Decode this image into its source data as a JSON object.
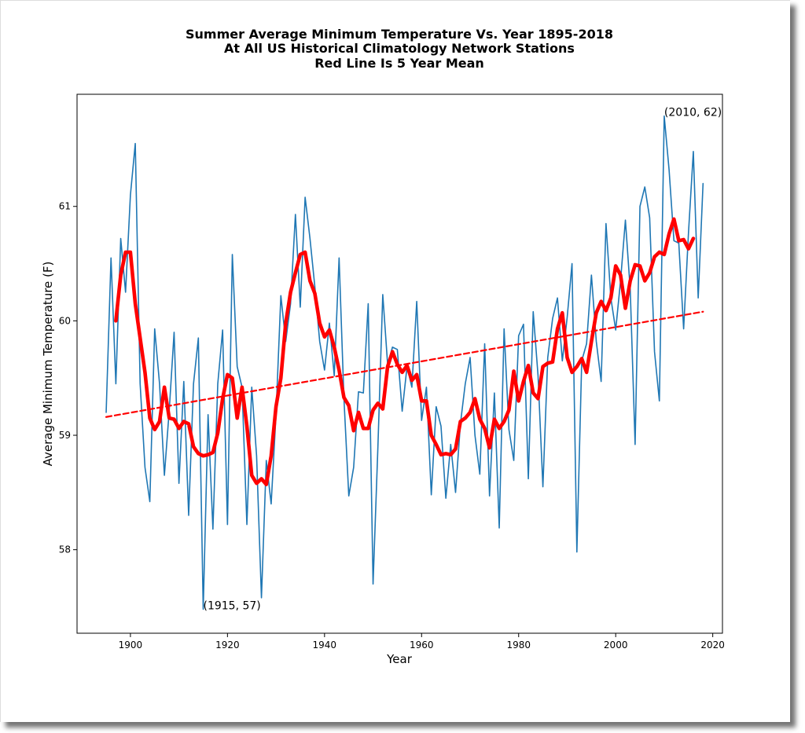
{
  "chart_data": {
    "type": "line",
    "title_lines": [
      "Summer Average Minimum Temperature Vs. Year 1895-2018",
      "At All US Historical Climatology Network Stations",
      "Red Line Is 5 Year Mean"
    ],
    "xlabel": "Year",
    "ylabel": "Average Minimum Temperature (F)",
    "xlim": [
      1889,
      2022
    ],
    "ylim": [
      57.27,
      61.98
    ],
    "xticks": [
      1900,
      1920,
      1940,
      1960,
      1980,
      2000,
      2020
    ],
    "yticks": [
      58,
      59,
      60,
      61
    ],
    "grid": false,
    "colors": {
      "series": "#1f77b4",
      "mean": "#ff0000",
      "trend": "#ff0000"
    },
    "annotations": [
      {
        "text": "(2010, 62)",
        "x": 2010,
        "y": 61.79
      },
      {
        "text": "(1915, 57)",
        "x": 1915,
        "y": 57.48
      }
    ],
    "series": [
      {
        "role": "annual",
        "x": [
          1895,
          1896,
          1897,
          1898,
          1899,
          1900,
          1901,
          1902,
          1903,
          1904,
          1905,
          1906,
          1907,
          1908,
          1909,
          1910,
          1911,
          1912,
          1913,
          1914,
          1915,
          1916,
          1917,
          1918,
          1919,
          1920,
          1921,
          1922,
          1923,
          1924,
          1925,
          1926,
          1927,
          1928,
          1929,
          1930,
          1931,
          1932,
          1933,
          1934,
          1935,
          1936,
          1937,
          1938,
          1939,
          1940,
          1941,
          1942,
          1943,
          1944,
          1945,
          1946,
          1947,
          1948,
          1949,
          1950,
          1951,
          1952,
          1953,
          1954,
          1955,
          1956,
          1957,
          1958,
          1959,
          1960,
          1961,
          1962,
          1963,
          1964,
          1965,
          1966,
          1967,
          1968,
          1969,
          1970,
          1971,
          1972,
          1973,
          1974,
          1975,
          1976,
          1977,
          1978,
          1979,
          1980,
          1981,
          1982,
          1983,
          1984,
          1985,
          1986,
          1987,
          1988,
          1989,
          1990,
          1991,
          1992,
          1993,
          1994,
          1995,
          1996,
          1997,
          1998,
          1999,
          2000,
          2001,
          2002,
          2003,
          2004,
          2005,
          2006,
          2007,
          2008,
          2009,
          2010,
          2011,
          2012,
          2013,
          2014,
          2015,
          2016,
          2017,
          2018
        ],
        "values": [
          59.2,
          60.55,
          59.45,
          60.72,
          60.25,
          61.1,
          61.55,
          59.45,
          58.72,
          58.42,
          59.93,
          59.45,
          58.65,
          59.22,
          59.9,
          58.58,
          59.47,
          58.3,
          59.45,
          59.85,
          57.48,
          59.18,
          58.18,
          59.45,
          59.92,
          58.22,
          60.58,
          59.6,
          59.42,
          58.22,
          59.42,
          58.82,
          57.58,
          58.78,
          58.4,
          59.18,
          60.22,
          59.82,
          60.15,
          60.93,
          60.12,
          61.08,
          60.72,
          60.3,
          59.82,
          59.57,
          59.98,
          59.52,
          60.55,
          59.32,
          58.47,
          58.72,
          59.38,
          59.37,
          60.15,
          57.7,
          58.9,
          60.23,
          59.62,
          59.77,
          59.75,
          59.21,
          59.6,
          59.42,
          60.17,
          59.13,
          59.42,
          58.48,
          59.25,
          59.08,
          58.45,
          58.92,
          58.5,
          59.1,
          59.45,
          59.68,
          59.0,
          58.66,
          59.8,
          58.47,
          59.37,
          58.19,
          59.93,
          59.05,
          58.78,
          59.87,
          59.97,
          58.62,
          60.08,
          59.52,
          58.55,
          59.68,
          60.02,
          60.2,
          59.65,
          60.03,
          60.5,
          57.98,
          59.65,
          59.8,
          60.4,
          59.82,
          59.47,
          60.85,
          60.2,
          59.92,
          60.35,
          60.88,
          60.27,
          58.92,
          61.0,
          61.17,
          60.9,
          59.73,
          59.3,
          61.79,
          61.32,
          60.7,
          60.68,
          59.93,
          60.77,
          61.48,
          60.2,
          61.2
        ]
      },
      {
        "role": "5-year mean",
        "x": [
          1897,
          1898,
          1899,
          1900,
          1901,
          1902,
          1903,
          1904,
          1905,
          1906,
          1907,
          1908,
          1909,
          1910,
          1911,
          1912,
          1913,
          1914,
          1915,
          1916,
          1917,
          1918,
          1919,
          1920,
          1921,
          1922,
          1923,
          1924,
          1925,
          1926,
          1927,
          1928,
          1929,
          1930,
          1931,
          1932,
          1933,
          1934,
          1935,
          1936,
          1937,
          1938,
          1939,
          1940,
          1941,
          1942,
          1943,
          1944,
          1945,
          1946,
          1947,
          1948,
          1949,
          1950,
          1951,
          1952,
          1953,
          1954,
          1955,
          1956,
          1957,
          1958,
          1959,
          1960,
          1961,
          1962,
          1963,
          1964,
          1965,
          1966,
          1967,
          1968,
          1969,
          1970,
          1971,
          1972,
          1973,
          1974,
          1975,
          1976,
          1977,
          1978,
          1979,
          1980,
          1981,
          1982,
          1983,
          1984,
          1985,
          1986,
          1987,
          1988,
          1989,
          1990,
          1991,
          1992,
          1993,
          1994,
          1995,
          1996,
          1997,
          1998,
          1999,
          2000,
          2001,
          2002,
          2003,
          2004,
          2005,
          2006,
          2007,
          2008,
          2009,
          2010,
          2011,
          2012,
          2013,
          2014,
          2015,
          2016
        ],
        "values": [
          60.0,
          60.4,
          60.6,
          60.6,
          60.15,
          59.85,
          59.55,
          59.15,
          59.05,
          59.12,
          59.42,
          59.15,
          59.14,
          59.06,
          59.12,
          59.1,
          58.9,
          58.84,
          58.82,
          58.83,
          58.85,
          59.02,
          59.32,
          59.53,
          59.5,
          59.15,
          59.42,
          59.08,
          58.65,
          58.58,
          58.62,
          58.57,
          58.82,
          59.25,
          59.5,
          59.98,
          60.25,
          60.42,
          60.58,
          60.6,
          60.35,
          60.24,
          59.98,
          59.86,
          59.92,
          59.77,
          59.57,
          59.33,
          59.26,
          59.04,
          59.2,
          59.06,
          59.06,
          59.22,
          59.28,
          59.23,
          59.6,
          59.73,
          59.62,
          59.55,
          59.61,
          59.48,
          59.53,
          59.3,
          59.3,
          59.0,
          58.92,
          58.83,
          58.84,
          58.83,
          58.88,
          59.12,
          59.15,
          59.2,
          59.32,
          59.14,
          59.06,
          58.89,
          59.14,
          59.06,
          59.12,
          59.22,
          59.56,
          59.3,
          59.47,
          59.61,
          59.37,
          59.32,
          59.6,
          59.63,
          59.64,
          59.93,
          60.07,
          59.68,
          59.55,
          59.6,
          59.67,
          59.55,
          59.82,
          60.07,
          60.17,
          60.09,
          60.2,
          60.48,
          60.4,
          60.11,
          60.35,
          60.49,
          60.48,
          60.35,
          60.42,
          60.56,
          60.6,
          60.58,
          60.76,
          60.89,
          60.7,
          60.71,
          60.63,
          60.72
        ]
      },
      {
        "role": "trend",
        "x": [
          1895,
          2018
        ],
        "values": [
          59.16,
          60.08
        ]
      }
    ]
  }
}
